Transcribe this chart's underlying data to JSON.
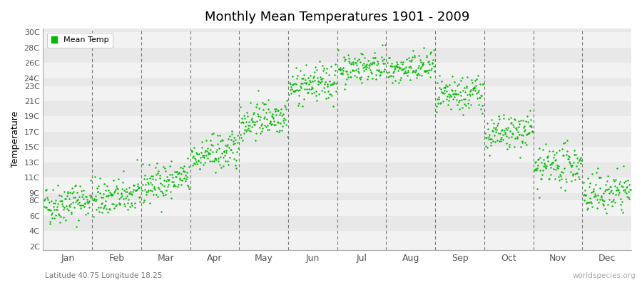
{
  "title": "Monthly Mean Temperatures 1901 - 2009",
  "ylabel": "Temperature",
  "subtitle": "Latitude 40.75 Longitude 18.25",
  "watermark": "worldspecies.org",
  "legend_label": "Mean Temp",
  "dot_color": "#00bb00",
  "background_color": "#ffffff",
  "stripe_colors": [
    "#f2f2f2",
    "#e8e8e8"
  ],
  "ytick_labels": [
    "2C",
    "4C",
    "6C",
    "8C",
    "9C",
    "11C",
    "13C",
    "15C",
    "17C",
    "19C",
    "21C",
    "23C",
    "24C",
    "26C",
    "28C",
    "30C"
  ],
  "ytick_values": [
    2,
    4,
    6,
    8,
    9,
    11,
    13,
    15,
    17,
    19,
    21,
    23,
    24,
    26,
    28,
    30
  ],
  "month_names": [
    "Jan",
    "Feb",
    "Mar",
    "Apr",
    "May",
    "Jun",
    "Jul",
    "Aug",
    "Sep",
    "Oct",
    "Nov",
    "Dec"
  ],
  "month_centers": [
    0.5,
    1.5,
    2.5,
    3.5,
    4.5,
    5.5,
    6.5,
    7.5,
    8.5,
    9.5,
    10.5,
    11.5
  ],
  "monthly_mean_temps": [
    7.8,
    8.5,
    10.5,
    14.2,
    18.8,
    23.2,
    25.5,
    25.3,
    21.8,
    16.8,
    12.5,
    9.0
  ],
  "monthly_trend": [
    0.008,
    0.006,
    0.01,
    0.01,
    0.01,
    0.008,
    0.006,
    0.008,
    0.01,
    0.01,
    0.008,
    0.008
  ],
  "monthly_noise": [
    1.3,
    1.2,
    1.2,
    1.2,
    1.2,
    1.2,
    1.0,
    1.0,
    1.2,
    1.2,
    1.3,
    1.3
  ],
  "n_years": 109,
  "seed": 42,
  "xlim": [
    0,
    12
  ],
  "ylim": [
    1.5,
    30.5
  ]
}
